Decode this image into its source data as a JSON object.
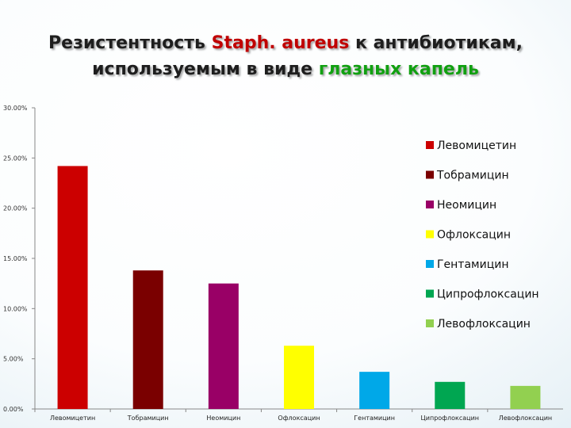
{
  "slide": {
    "title_line1": [
      {
        "text": "Резистентность ",
        "color": "#1e1e1e"
      },
      {
        "text": "Staph. aureus",
        "color": "#c00000"
      },
      {
        "text": " к антибиотикам,",
        "color": "#1e1e1e"
      }
    ],
    "title_line2": [
      {
        "text": "используемым в виде ",
        "color": "#1e1e1e"
      },
      {
        "text": "глазных капель",
        "color": "#11a011"
      }
    ]
  },
  "chart_data": {
    "type": "bar",
    "categories": [
      "Левомицетин",
      "Тобрамицин",
      "Неомицин",
      "Офлоксацин",
      "Гентамицин",
      "Ципрофлоксацин",
      "Левофлоксацин"
    ],
    "series": [
      {
        "values": [
          0.242,
          0.138,
          0.125,
          0.063,
          0.037,
          0.027,
          0.023
        ],
        "colors": [
          "#cc0000",
          "#7a0000",
          "#990066",
          "#ffff00",
          "#00a8e8",
          "#00a651",
          "#92d050"
        ]
      }
    ],
    "ylim": [
      0,
      0.3
    ],
    "ytick_values": [
      0,
      0.05,
      0.1,
      0.15,
      0.2,
      0.25,
      0.3
    ],
    "ytick_labels": [
      "0.00%",
      "5.00%",
      "10.00%",
      "15.00%",
      "20.00%",
      "25.00%",
      "30.00%"
    ],
    "legend": {
      "position": "right",
      "entries": [
        "Левомицетин",
        "Тобрамицин",
        "Неомицин",
        "Офлоксацин",
        "Гентамицин",
        "Ципрофлоксацин",
        "Левофлоксацин"
      ]
    },
    "grid": false
  }
}
